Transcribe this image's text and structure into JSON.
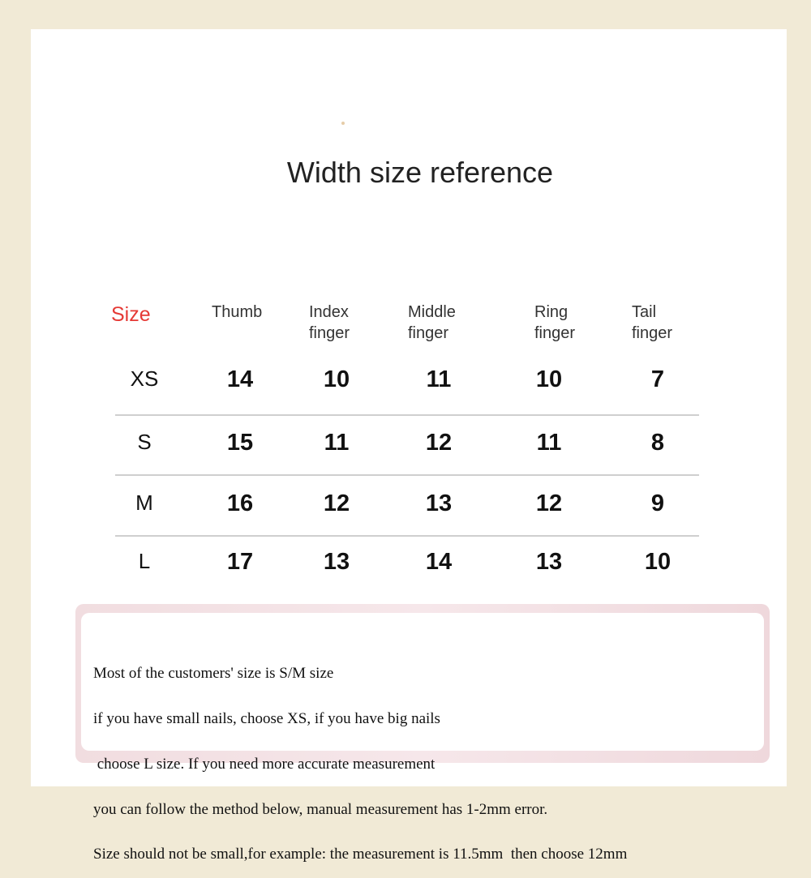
{
  "title": "Width size reference",
  "headers": [
    "Size",
    "Thumb",
    "Index\nfinger",
    "Middle\nfinger",
    "Ring\nfinger",
    "Tail\nfinger"
  ],
  "rows": [
    {
      "size": "XS",
      "values": [
        "14",
        "10",
        "11",
        "10",
        "7"
      ]
    },
    {
      "size": "S",
      "values": [
        "15",
        "11",
        "12",
        "11",
        "8"
      ]
    },
    {
      "size": "M",
      "values": [
        "16",
        "12",
        "13",
        "12",
        "9"
      ]
    },
    {
      "size": "L",
      "values": [
        "17",
        "13",
        "14",
        "13",
        "10"
      ]
    }
  ],
  "note": [
    "Most of the customers' size is S/M size",
    "if you have small nails, choose XS, if you have big nails",
    " choose L size. If you need more accurate measurement",
    "you can follow the method below, manual measurement has 1-2mm error.",
    "Size should not be small,for example: the measurement is 11.5mm  then choose 12mm"
  ],
  "colors": {
    "frame": "#f1ead6",
    "size_header": "#e53935"
  }
}
